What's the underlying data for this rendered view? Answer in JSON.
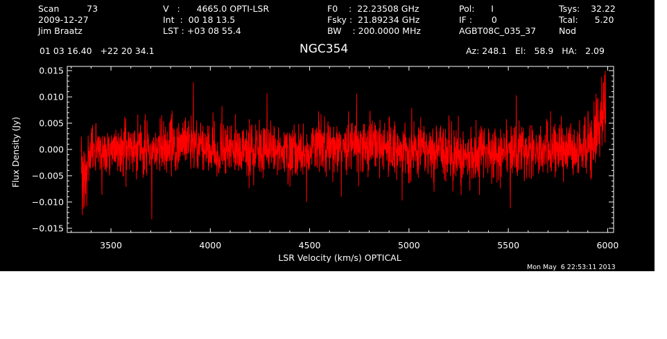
{
  "header": {
    "col1": [
      "Scan          73",
      "2009-12-27",
      "Jim Braatz"
    ],
    "col2": [
      "V   :      4665.0 OPTI-LSR",
      "Int  :  00 18 13.5",
      "LST : +03 08 55.4"
    ],
    "col3": [
      "F0    :  22.23508 GHz",
      "Fsky :  21.89234 GHz",
      "BW    : 200.0000 MHz"
    ],
    "col4": [
      "Pol:      I",
      "IF :       0",
      "AGBT08C_035_37"
    ],
    "col5": [
      "Tsys:    32.22",
      "Tcal:      5.20",
      "Nod"
    ],
    "coords": "01 03 16.40   +22 20 34.1",
    "source": "NGC354",
    "azel": "Az: 248.1   El:   58.9   HA:   2.09",
    "timestamp": "Mon May  6 22:53:11 2013"
  },
  "colors": {
    "background": "#000000",
    "foreground": "#ffffff",
    "trace": "#ff0000"
  },
  "chart_data": {
    "type": "line",
    "title": "NGC354",
    "xlabel": "LSR Velocity (km/s) OPTICAL",
    "ylabel": "Flux Density (Jy)",
    "xlim": [
      3280,
      6030
    ],
    "ylim": [
      -0.0158,
      0.0158
    ],
    "xticks": [
      3500,
      4000,
      4500,
      5000,
      5500,
      6000
    ],
    "xtick_labels": [
      "3500",
      "4000",
      "4500",
      "5000",
      "5500",
      "6000"
    ],
    "yticks": [
      -0.015,
      -0.01,
      -0.005,
      0.0,
      0.005,
      0.01,
      0.015
    ],
    "ytick_labels": [
      "−0.015",
      "−0.010",
      "−0.005",
      "0.000",
      "0.005",
      "0.010",
      "0.015"
    ],
    "grid": false,
    "series": [
      {
        "color": "#ff0000",
        "x_start": 3350,
        "x_end": 5990,
        "noise_rms": 0.0026,
        "baseline": [
          [
            3350,
            -0.001
          ],
          [
            3370,
            -0.005
          ],
          [
            3400,
            0.0
          ],
          [
            3500,
            0.0
          ],
          [
            3700,
            0.0
          ],
          [
            3900,
            0.001
          ],
          [
            4000,
            0.0
          ],
          [
            4200,
            0.0
          ],
          [
            4500,
            0.0
          ],
          [
            4800,
            0.001
          ],
          [
            5000,
            0.0
          ],
          [
            5300,
            -0.001
          ],
          [
            5600,
            0.0
          ],
          [
            5850,
            0.0
          ],
          [
            5930,
            0.002
          ],
          [
            5990,
            0.008
          ]
        ],
        "features": [
          [
            3355,
            -0.0125
          ],
          [
            3368,
            -0.011
          ],
          [
            3915,
            0.0128
          ],
          [
            3705,
            -0.0133
          ],
          [
            4285,
            0.0107
          ],
          [
            4485,
            -0.01
          ],
          [
            4660,
            -0.009
          ],
          [
            4965,
            -0.0097
          ],
          [
            5510,
            -0.0112
          ],
          [
            5540,
            0.0103
          ],
          [
            5985,
            0.0142
          ],
          [
            5978,
            0.0125
          ]
        ]
      }
    ]
  }
}
